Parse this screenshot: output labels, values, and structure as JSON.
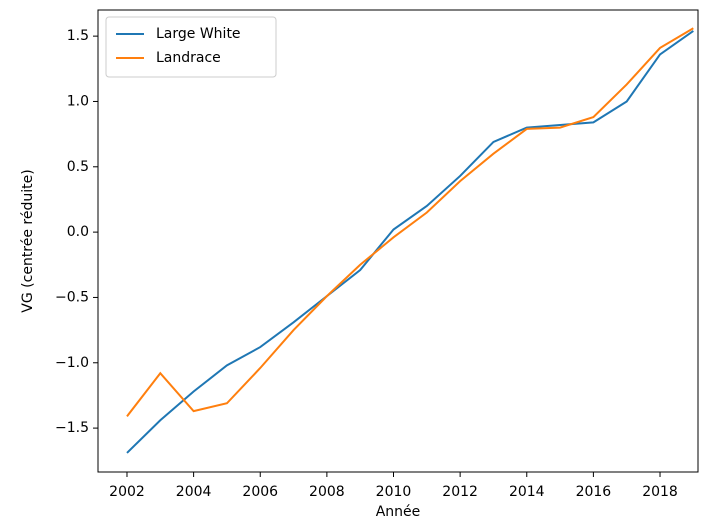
{
  "chart_data": {
    "type": "line",
    "xlabel": "Année",
    "ylabel": "VG (centrée réduite)",
    "x": [
      2002,
      2003,
      2004,
      2005,
      2006,
      2007,
      2008,
      2009,
      2010,
      2011,
      2012,
      2013,
      2014,
      2015,
      2016,
      2017,
      2018,
      2019
    ],
    "series": [
      {
        "name": "Large White",
        "color": "#1f77b4",
        "values": [
          -1.69,
          -1.44,
          -1.22,
          -1.02,
          -0.88,
          -0.69,
          -0.49,
          -0.29,
          0.02,
          0.2,
          0.43,
          0.69,
          0.8,
          0.82,
          0.84,
          1.0,
          1.36,
          1.54
        ]
      },
      {
        "name": "Landrace",
        "color": "#ff7f0e",
        "values": [
          -1.41,
          -1.08,
          -1.37,
          -1.31,
          -1.04,
          -0.75,
          -0.49,
          -0.25,
          -0.04,
          0.15,
          0.39,
          0.6,
          0.79,
          0.8,
          0.88,
          1.13,
          1.41,
          1.56
        ]
      }
    ],
    "xlim": [
      2001.13,
      2019.14
    ],
    "ylim": [
      -1.836,
      1.7
    ],
    "xticks": [
      2002,
      2004,
      2006,
      2008,
      2010,
      2012,
      2014,
      2016,
      2018
    ],
    "yticks": [
      {
        "value": -1.5,
        "label": "−1.5"
      },
      {
        "value": -1.0,
        "label": "−1.0"
      },
      {
        "value": -0.5,
        "label": "−0.5"
      },
      {
        "value": 0.0,
        "label": "0.0"
      },
      0.5,
      {
        "value": 1.0,
        "label": "1.0"
      },
      1.5
    ],
    "grid": false,
    "legend": "upper-left"
  }
}
